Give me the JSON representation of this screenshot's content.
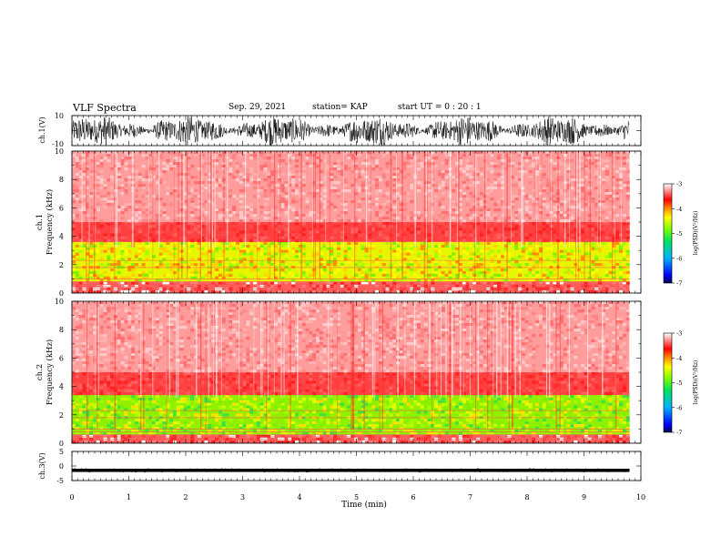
{
  "header": {
    "title": "VLF Spectra",
    "date": "Sep. 29, 2021",
    "station": "station= KAP",
    "start_ut": "start  UT =   0  : 20 : 1"
  },
  "chart_data": [
    {
      "id": "ch1-waveform",
      "type": "line",
      "ylabel": "ch.1(V)",
      "ylim": [
        -10,
        10
      ],
      "y_ticks": [
        "10",
        "-10"
      ],
      "xlim": [
        0,
        10
      ],
      "data_end_min": 9.8,
      "description_color": "#000000"
    },
    {
      "id": "ch1-spectrogram",
      "type": "heatmap",
      "ylabel_line1": "ch.1",
      "ylabel_line2": "Frequency (kHz)",
      "ylim": [
        0,
        10
      ],
      "y_ticks": [
        "0",
        "2",
        "4",
        "6",
        "8",
        "10"
      ],
      "xlim": [
        0,
        10
      ],
      "data_end_min": 9.8,
      "colorbar": {
        "label": "log(PSD)(V²/Hz)",
        "range": [
          -7,
          -3
        ],
        "ticks": [
          "-3",
          "-4",
          "-5",
          "-6",
          "-7"
        ]
      },
      "bands": [
        {
          "from_khz": 0,
          "to_khz": 0.8,
          "level": "red-white"
        },
        {
          "from_khz": 0.8,
          "to_khz": 3.6,
          "level": "green-yellow"
        },
        {
          "from_khz": 3.6,
          "to_khz": 5.0,
          "level": "red"
        },
        {
          "from_khz": 5.0,
          "to_khz": 10,
          "level": "light-red"
        }
      ]
    },
    {
      "id": "ch2-spectrogram",
      "type": "heatmap",
      "ylabel_line1": "ch.2",
      "ylabel_line2": "Frequency (kHz)",
      "ylim": [
        0,
        10
      ],
      "y_ticks": [
        "0",
        "2",
        "4",
        "6",
        "8",
        "10"
      ],
      "xlim": [
        0,
        10
      ],
      "data_end_min": 9.8,
      "colorbar": {
        "label": "log(PSD)(V²/Hz)",
        "range": [
          -7,
          -3
        ],
        "ticks": [
          "-3",
          "-4",
          "-5",
          "-6",
          "-7"
        ]
      },
      "bands": [
        {
          "from_khz": 0,
          "to_khz": 0.6,
          "level": "red-white"
        },
        {
          "from_khz": 0.6,
          "to_khz": 3.4,
          "level": "green"
        },
        {
          "from_khz": 3.4,
          "to_khz": 5.0,
          "level": "red"
        },
        {
          "from_khz": 5.0,
          "to_khz": 10,
          "level": "light-red"
        }
      ]
    },
    {
      "id": "ch3-waveform",
      "type": "line",
      "ylabel": "ch.3(V)",
      "ylim": [
        -5,
        5
      ],
      "y_ticks": [
        "5",
        "0",
        "-5"
      ],
      "xlim": [
        0,
        10
      ],
      "data_end_min": 9.8,
      "offset_v": -1.5
    }
  ],
  "x_axis": {
    "label": "Time (min)",
    "ticks": [
      "0",
      "1",
      "2",
      "3",
      "4",
      "5",
      "6",
      "7",
      "8",
      "9",
      "10"
    ]
  }
}
